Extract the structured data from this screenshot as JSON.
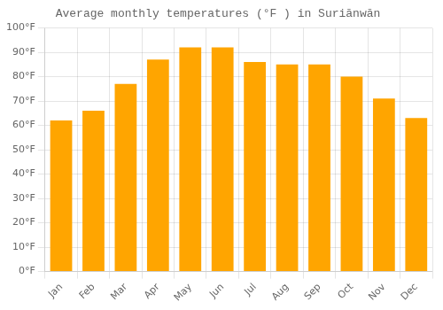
{
  "chart_data": {
    "type": "bar",
    "title": "Average monthly temperatures (°F ) in Suriānwān",
    "categories": [
      "Jan",
      "Feb",
      "Mar",
      "Apr",
      "May",
      "Jun",
      "Jul",
      "Aug",
      "Sep",
      "Oct",
      "Nov",
      "Dec"
    ],
    "values": [
      62,
      66,
      77,
      87,
      92,
      92,
      86,
      85,
      85,
      80,
      71,
      63
    ],
    "color": "#FFA500",
    "ylim": [
      0,
      100
    ],
    "yticks": [
      {
        "value": 0,
        "label": "0°F"
      },
      {
        "value": 10,
        "label": "10°F"
      },
      {
        "value": 20,
        "label": "20°F"
      },
      {
        "value": 30,
        "label": "30°F"
      },
      {
        "value": 40,
        "label": "40°F"
      },
      {
        "value": 50,
        "label": "50°F"
      },
      {
        "value": 60,
        "label": "60°F"
      },
      {
        "value": 70,
        "label": "70°F"
      },
      {
        "value": 80,
        "label": "80°F"
      },
      {
        "value": 90,
        "label": "90°F"
      },
      {
        "value": 100,
        "label": "100°F"
      }
    ],
    "grid": true
  }
}
